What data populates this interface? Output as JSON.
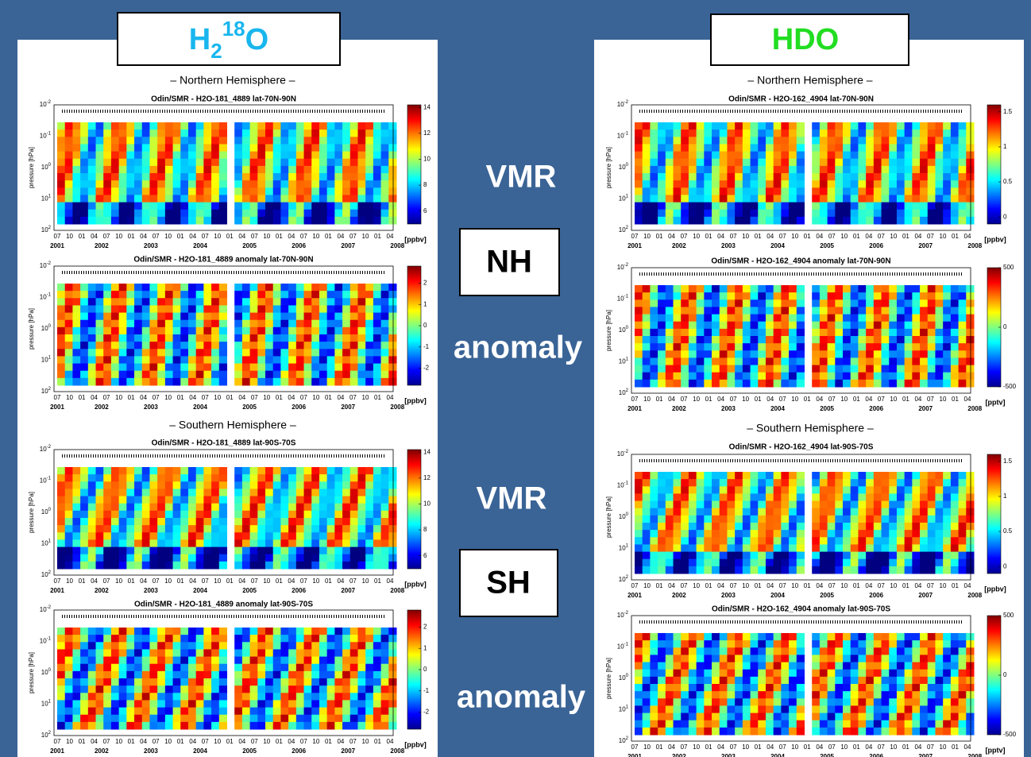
{
  "headers": {
    "left": {
      "base": "H",
      "sub": "2",
      "sup": "18",
      "end": "O"
    },
    "right": "HDO"
  },
  "side_labels": [
    "VMR",
    "NH",
    "anomaly",
    "VMR",
    "SH",
    "anomaly"
  ],
  "axes": {
    "ylabel": "pressure [hPa]",
    "ytick_base": "10",
    "ytick_exponents": [
      "-2",
      "-1",
      "0",
      "1",
      "2"
    ],
    "months": [
      "07",
      "10",
      "01",
      "04",
      "07",
      "10",
      "01",
      "04",
      "07",
      "10",
      "01",
      "04",
      "07",
      "10",
      "01",
      "04",
      "07",
      "10",
      "01",
      "04",
      "07",
      "10",
      "01",
      "04",
      "07",
      "10",
      "01",
      "04"
    ],
    "years": [
      "2001",
      "2002",
      "2003",
      "2004",
      "2005",
      "2006",
      "2007",
      "2008"
    ]
  },
  "columns": [
    {
      "hemispheres": [
        "– Northern Hemisphere –",
        "– Southern Hemisphere –"
      ],
      "plots": [
        {
          "title": "Odin/SMR - H2O-181_4889   lat-70N-90N",
          "clim": [
            5,
            14.2
          ],
          "cbar_ticks": [
            6,
            8,
            10,
            12,
            14
          ],
          "unit": "[ppbv]"
        },
        {
          "title": "Odin/SMR - H2O-181_4889 anomaly   lat-70N-90N",
          "clim": [
            -2.8,
            2.8
          ],
          "cbar_ticks": [
            -2,
            -1,
            0,
            1,
            2
          ],
          "unit": "[ppbv]"
        },
        {
          "title": "Odin/SMR - H2O-181_4889   lat-90S-70S",
          "clim": [
            5,
            14.2
          ],
          "cbar_ticks": [
            6,
            8,
            10,
            12,
            14
          ],
          "unit": "[ppbv]"
        },
        {
          "title": "Odin/SMR - H2O-181_4889 anomaly   lat-90S-70S",
          "clim": [
            -2.8,
            2.8
          ],
          "cbar_ticks": [
            -2,
            -1,
            0,
            1,
            2
          ],
          "unit": "[ppbv]"
        }
      ]
    },
    {
      "hemispheres": [
        "– Northern Hemisphere –",
        "– Southern Hemisphere –"
      ],
      "plots": [
        {
          "title": "Odin/SMR - H2O-162_4904   lat-70N-90N",
          "clim": [
            -0.1,
            1.6
          ],
          "cbar_ticks": [
            0,
            0.5,
            1,
            1.5
          ],
          "unit": "[ppbv]"
        },
        {
          "title": "Odin/SMR - H2O-162_4904 anomaly   lat-70N-90N",
          "clim": [
            -500,
            500
          ],
          "cbar_ticks": [
            -500,
            0,
            500
          ],
          "unit": "[pptv]"
        },
        {
          "title": "Odin/SMR - H2O-162_4904   lat-90S-70S",
          "clim": [
            -0.1,
            1.6
          ],
          "cbar_ticks": [
            0,
            0.5,
            1,
            1.5
          ],
          "unit": "[ppbv]"
        },
        {
          "title": "Odin/SMR - H2O-162_4904 anomaly   lat-90S-70S",
          "clim": [
            -500,
            500
          ],
          "cbar_ticks": [
            -500,
            0,
            500
          ],
          "unit": "[pptv]"
        }
      ]
    }
  ]
}
